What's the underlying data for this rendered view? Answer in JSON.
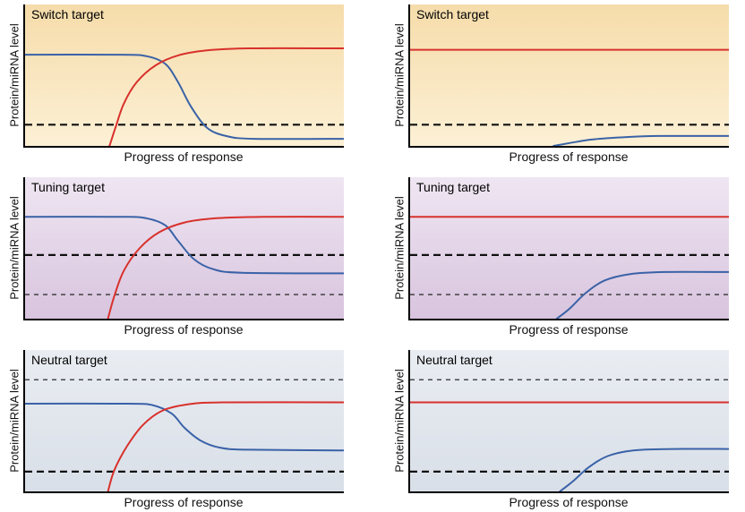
{
  "labels": {
    "ylabel": "Protein/miRNA level",
    "xlabel": "Progress of response"
  },
  "styles": {
    "axis_color": "#000000",
    "dash_color": "#111111",
    "red": "#d8312b",
    "blue": "#3a62a7"
  },
  "chart_data": [
    {
      "type": "line",
      "title": "Switch target",
      "xlabel": "Progress of response",
      "ylabel": "Protein/miRNA level",
      "x_range": [
        0,
        1
      ],
      "y_range": [
        0,
        1
      ],
      "background": {
        "top": "#f6dcaa",
        "bottom": "#fcf0d5"
      },
      "dashed_lines": [
        {
          "y": 0.15,
          "style": "bold"
        }
      ],
      "series": [
        {
          "name": "blue",
          "color": "#3a62a7",
          "points": [
            [
              0,
              0.645
            ],
            [
              0.3,
              0.645
            ],
            [
              0.38,
              0.635
            ],
            [
              0.44,
              0.58
            ],
            [
              0.48,
              0.45
            ],
            [
              0.52,
              0.28
            ],
            [
              0.57,
              0.13
            ],
            [
              0.63,
              0.07
            ],
            [
              0.72,
              0.05
            ],
            [
              1,
              0.05
            ]
          ]
        },
        {
          "name": "red",
          "color": "#d8312b",
          "points": [
            [
              0.265,
              0
            ],
            [
              0.285,
              0.14
            ],
            [
              0.31,
              0.3
            ],
            [
              0.35,
              0.45
            ],
            [
              0.41,
              0.57
            ],
            [
              0.48,
              0.64
            ],
            [
              0.57,
              0.675
            ],
            [
              0.7,
              0.69
            ],
            [
              1,
              0.69
            ]
          ]
        }
      ]
    },
    {
      "type": "line",
      "title": "Switch target",
      "xlabel": "Progress of response",
      "ylabel": "Protein/miRNA level",
      "x_range": [
        0,
        1
      ],
      "y_range": [
        0,
        1
      ],
      "background": {
        "top": "#f6dcaa",
        "bottom": "#fcf0d5"
      },
      "dashed_lines": [
        {
          "y": 0.15,
          "style": "bold"
        }
      ],
      "series": [
        {
          "name": "red",
          "color": "#d8312b",
          "points": [
            [
              0,
              0.68
            ],
            [
              1,
              0.68
            ]
          ]
        },
        {
          "name": "blue",
          "color": "#3a62a7",
          "points": [
            [
              0.45,
              0
            ],
            [
              0.5,
              0.02
            ],
            [
              0.57,
              0.045
            ],
            [
              0.66,
              0.06
            ],
            [
              0.78,
              0.07
            ],
            [
              1,
              0.07
            ]
          ]
        }
      ]
    },
    {
      "type": "line",
      "title": "Tuning target",
      "xlabel": "Progress of response",
      "ylabel": "Protein/miRNA level",
      "x_range": [
        0,
        1
      ],
      "y_range": [
        0,
        1
      ],
      "background": {
        "top": "#efe6f2",
        "bottom": "#d8c4de"
      },
      "dashed_lines": [
        {
          "y": 0.45,
          "style": "bold"
        },
        {
          "y": 0.17,
          "style": "thin"
        }
      ],
      "series": [
        {
          "name": "blue",
          "color": "#3a62a7",
          "points": [
            [
              0,
              0.72
            ],
            [
              0.3,
              0.72
            ],
            [
              0.38,
              0.71
            ],
            [
              0.44,
              0.66
            ],
            [
              0.48,
              0.55
            ],
            [
              0.53,
              0.42
            ],
            [
              0.59,
              0.35
            ],
            [
              0.68,
              0.325
            ],
            [
              1,
              0.32
            ]
          ]
        },
        {
          "name": "red",
          "color": "#d8312b",
          "points": [
            [
              0.26,
              0
            ],
            [
              0.28,
              0.16
            ],
            [
              0.31,
              0.34
            ],
            [
              0.36,
              0.5
            ],
            [
              0.42,
              0.61
            ],
            [
              0.5,
              0.68
            ],
            [
              0.6,
              0.71
            ],
            [
              0.75,
              0.72
            ],
            [
              1,
              0.72
            ]
          ]
        }
      ]
    },
    {
      "type": "line",
      "title": "Tuning target",
      "xlabel": "Progress of response",
      "ylabel": "Protein/miRNA level",
      "x_range": [
        0,
        1
      ],
      "y_range": [
        0,
        1
      ],
      "background": {
        "top": "#efe6f2",
        "bottom": "#d8c4de"
      },
      "dashed_lines": [
        {
          "y": 0.45,
          "style": "bold"
        },
        {
          "y": 0.17,
          "style": "thin"
        }
      ],
      "series": [
        {
          "name": "red",
          "color": "#d8312b",
          "points": [
            [
              0,
              0.72
            ],
            [
              1,
              0.72
            ]
          ]
        },
        {
          "name": "blue",
          "color": "#3a62a7",
          "points": [
            [
              0.46,
              0
            ],
            [
              0.5,
              0.07
            ],
            [
              0.55,
              0.18
            ],
            [
              0.61,
              0.27
            ],
            [
              0.69,
              0.315
            ],
            [
              0.8,
              0.33
            ],
            [
              1,
              0.33
            ]
          ]
        }
      ]
    },
    {
      "type": "line",
      "title": "Neutral target",
      "xlabel": "Progress of response",
      "ylabel": "Protein/miRNA level",
      "x_range": [
        0,
        1
      ],
      "y_range": [
        0,
        1
      ],
      "background": {
        "top": "#e9edf2",
        "bottom": "#d9dfe8"
      },
      "dashed_lines": [
        {
          "y": 0.79,
          "style": "thin"
        },
        {
          "y": 0.14,
          "style": "bold"
        }
      ],
      "series": [
        {
          "name": "blue",
          "color": "#3a62a7",
          "points": [
            [
              0,
              0.62
            ],
            [
              0.32,
              0.62
            ],
            [
              0.4,
              0.61
            ],
            [
              0.46,
              0.55
            ],
            [
              0.5,
              0.45
            ],
            [
              0.55,
              0.36
            ],
            [
              0.61,
              0.31
            ],
            [
              0.7,
              0.295
            ],
            [
              1,
              0.29
            ]
          ]
        },
        {
          "name": "red",
          "color": "#d8312b",
          "points": [
            [
              0.26,
              0
            ],
            [
              0.28,
              0.15
            ],
            [
              0.32,
              0.32
            ],
            [
              0.37,
              0.47
            ],
            [
              0.43,
              0.57
            ],
            [
              0.51,
              0.615
            ],
            [
              0.62,
              0.63
            ],
            [
              1,
              0.63
            ]
          ]
        }
      ]
    },
    {
      "type": "line",
      "title": "Neutral target",
      "xlabel": "Progress of response",
      "ylabel": "Protein/miRNA level",
      "x_range": [
        0,
        1
      ],
      "y_range": [
        0,
        1
      ],
      "background": {
        "top": "#e9edf2",
        "bottom": "#d9dfe8"
      },
      "dashed_lines": [
        {
          "y": 0.79,
          "style": "thin"
        },
        {
          "y": 0.14,
          "style": "bold"
        }
      ],
      "series": [
        {
          "name": "red",
          "color": "#d8312b",
          "points": [
            [
              0,
              0.63
            ],
            [
              1,
              0.63
            ]
          ]
        },
        {
          "name": "blue",
          "color": "#3a62a7",
          "points": [
            [
              0.47,
              0
            ],
            [
              0.51,
              0.07
            ],
            [
              0.56,
              0.17
            ],
            [
              0.62,
              0.25
            ],
            [
              0.7,
              0.29
            ],
            [
              0.82,
              0.3
            ],
            [
              1,
              0.3
            ]
          ]
        }
      ]
    }
  ]
}
